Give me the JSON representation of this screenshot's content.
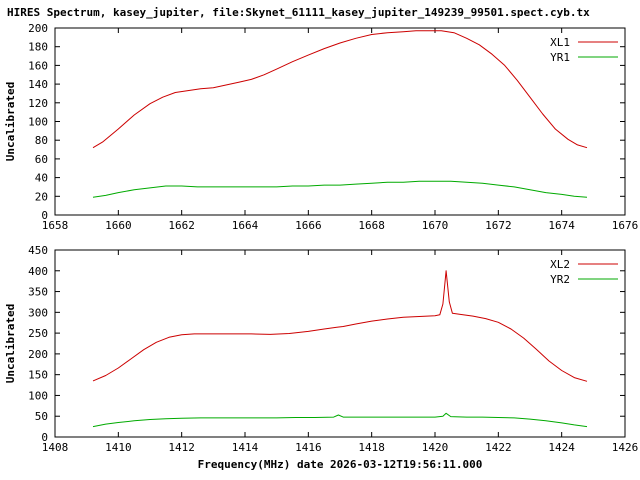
{
  "title": "HIRES Spectrum, kasey_jupiter, file:Skynet_61111_kasey_jupiter_149239_99501.spect.cyb.tx",
  "xlabel": "Frequency(MHz) date 2026-03-12T19:56:11.000",
  "colors": {
    "red": "#cc0000",
    "green": "#00aa00",
    "axis": "#000000",
    "text": "#000000"
  },
  "chart_data": [
    {
      "type": "line",
      "panel": "top",
      "ylabel": "Uncalibrated",
      "xlim": [
        1658,
        1676
      ],
      "ylim": [
        0,
        200
      ],
      "x_tick_step": 2,
      "y_tick_step": 20,
      "grid": false,
      "legend_position": "top-right",
      "series": [
        {
          "name": "XL1",
          "color_key": "red",
          "points": [
            [
              1659.2,
              72
            ],
            [
              1659.5,
              78
            ],
            [
              1660,
              92
            ],
            [
              1660.5,
              107
            ],
            [
              1661,
              119
            ],
            [
              1661.4,
              126
            ],
            [
              1661.8,
              131
            ],
            [
              1662.2,
              133
            ],
            [
              1662.6,
              135
            ],
            [
              1663,
              136
            ],
            [
              1663.4,
              139
            ],
            [
              1663.8,
              142
            ],
            [
              1664.2,
              145
            ],
            [
              1664.6,
              150
            ],
            [
              1665,
              156
            ],
            [
              1665.5,
              164
            ],
            [
              1666,
              171
            ],
            [
              1666.5,
              178
            ],
            [
              1667,
              184
            ],
            [
              1667.5,
              189
            ],
            [
              1668,
              193
            ],
            [
              1668.5,
              195
            ],
            [
              1669,
              196
            ],
            [
              1669.4,
              197
            ],
            [
              1669.8,
              197
            ],
            [
              1670.2,
              197
            ],
            [
              1670.6,
              195
            ],
            [
              1671,
              189
            ],
            [
              1671.4,
              182
            ],
            [
              1671.8,
              172
            ],
            [
              1672.2,
              160
            ],
            [
              1672.6,
              144
            ],
            [
              1673,
              126
            ],
            [
              1673.4,
              108
            ],
            [
              1673.8,
              92
            ],
            [
              1674.2,
              81
            ],
            [
              1674.5,
              75
            ],
            [
              1674.8,
              72
            ]
          ]
        },
        {
          "name": "YR1",
          "color_key": "green",
          "points": [
            [
              1659.2,
              19
            ],
            [
              1659.6,
              21
            ],
            [
              1660,
              24
            ],
            [
              1660.5,
              27
            ],
            [
              1661,
              29
            ],
            [
              1661.5,
              31
            ],
            [
              1662,
              31
            ],
            [
              1662.5,
              30
            ],
            [
              1663,
              30
            ],
            [
              1663.5,
              30
            ],
            [
              1664,
              30
            ],
            [
              1664.5,
              30
            ],
            [
              1665,
              30
            ],
            [
              1665.5,
              31
            ],
            [
              1666,
              31
            ],
            [
              1666.5,
              32
            ],
            [
              1667,
              32
            ],
            [
              1667.5,
              33
            ],
            [
              1668,
              34
            ],
            [
              1668.5,
              35
            ],
            [
              1669,
              35
            ],
            [
              1669.5,
              36
            ],
            [
              1670,
              36
            ],
            [
              1670.5,
              36
            ],
            [
              1671,
              35
            ],
            [
              1671.5,
              34
            ],
            [
              1672,
              32
            ],
            [
              1672.5,
              30
            ],
            [
              1673,
              27
            ],
            [
              1673.5,
              24
            ],
            [
              1674,
              22
            ],
            [
              1674.4,
              20
            ],
            [
              1674.8,
              19
            ]
          ]
        }
      ]
    },
    {
      "type": "line",
      "panel": "bottom",
      "ylabel": "Uncalibrated",
      "xlim": [
        1408,
        1426
      ],
      "ylim": [
        0,
        450
      ],
      "x_tick_step": 2,
      "y_tick_step": 50,
      "grid": false,
      "legend_position": "top-right",
      "series": [
        {
          "name": "XL2",
          "color_key": "red",
          "points": [
            [
              1409.2,
              135
            ],
            [
              1409.6,
              148
            ],
            [
              1410,
              166
            ],
            [
              1410.4,
              188
            ],
            [
              1410.8,
              210
            ],
            [
              1411.2,
              228
            ],
            [
              1411.6,
              240
            ],
            [
              1412,
              246
            ],
            [
              1412.4,
              248
            ],
            [
              1413,
              248
            ],
            [
              1413.6,
              248
            ],
            [
              1414.2,
              248
            ],
            [
              1414.8,
              247
            ],
            [
              1415.4,
              249
            ],
            [
              1416,
              254
            ],
            [
              1416.5,
              260
            ],
            [
              1416.9,
              264
            ],
            [
              1417.1,
              266
            ],
            [
              1417.5,
              272
            ],
            [
              1418,
              279
            ],
            [
              1418.5,
              284
            ],
            [
              1419,
              288
            ],
            [
              1419.5,
              290
            ],
            [
              1420,
              292
            ],
            [
              1420.15,
              294
            ],
            [
              1420.25,
              320
            ],
            [
              1420.35,
              400
            ],
            [
              1420.45,
              325
            ],
            [
              1420.55,
              298
            ],
            [
              1420.8,
              295
            ],
            [
              1421.2,
              291
            ],
            [
              1421.6,
              285
            ],
            [
              1422,
              276
            ],
            [
              1422.4,
              260
            ],
            [
              1422.8,
              238
            ],
            [
              1423.2,
              211
            ],
            [
              1423.6,
              183
            ],
            [
              1424,
              160
            ],
            [
              1424.4,
              143
            ],
            [
              1424.8,
              134
            ]
          ]
        },
        {
          "name": "YR2",
          "color_key": "green",
          "points": [
            [
              1409.2,
              25
            ],
            [
              1409.6,
              31
            ],
            [
              1410,
              35
            ],
            [
              1410.5,
              39
            ],
            [
              1411,
              42
            ],
            [
              1411.5,
              44
            ],
            [
              1412,
              45
            ],
            [
              1412.6,
              46
            ],
            [
              1413.2,
              46
            ],
            [
              1413.8,
              46
            ],
            [
              1414.4,
              46
            ],
            [
              1415,
              46
            ],
            [
              1415.6,
              47
            ],
            [
              1416.2,
              47
            ],
            [
              1416.8,
              48
            ],
            [
              1416.95,
              53
            ],
            [
              1417.1,
              48
            ],
            [
              1417.6,
              48
            ],
            [
              1418.2,
              48
            ],
            [
              1418.8,
              48
            ],
            [
              1419.4,
              48
            ],
            [
              1420,
              48
            ],
            [
              1420.25,
              50
            ],
            [
              1420.35,
              57
            ],
            [
              1420.5,
              49
            ],
            [
              1421,
              48
            ],
            [
              1421.5,
              48
            ],
            [
              1422,
              47
            ],
            [
              1422.5,
              46
            ],
            [
              1423,
              43
            ],
            [
              1423.5,
              39
            ],
            [
              1424,
              34
            ],
            [
              1424.4,
              29
            ],
            [
              1424.8,
              25
            ]
          ]
        }
      ]
    }
  ]
}
